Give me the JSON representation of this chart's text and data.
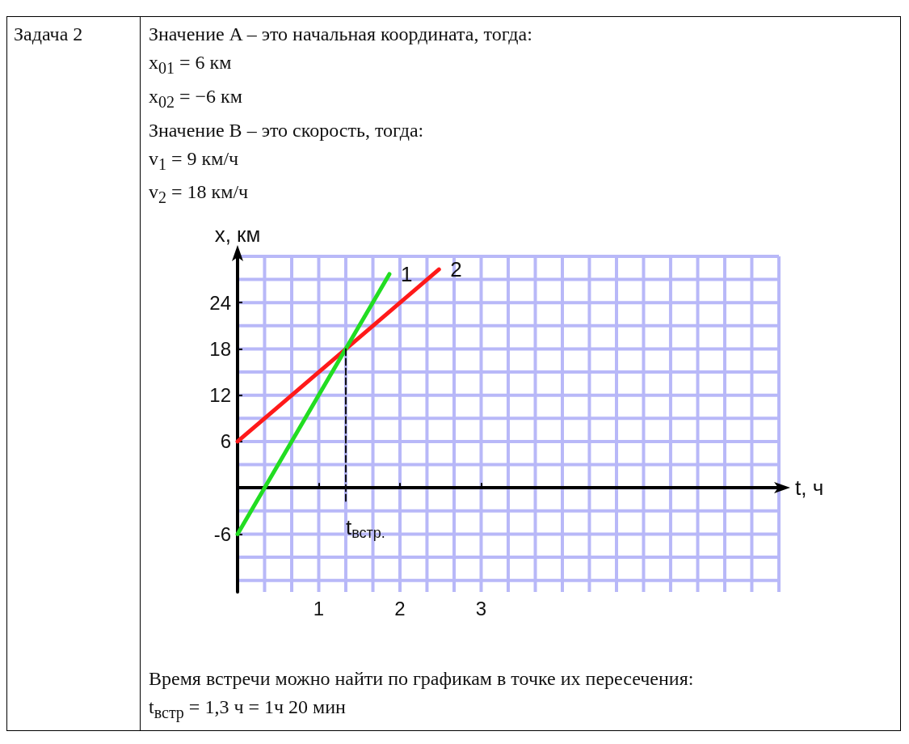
{
  "chart_data": {
    "type": "line",
    "title": "Задача 2",
    "xlabel": "t, ч",
    "ylabel": "x, км",
    "xlim": [
      0,
      6.667
    ],
    "ylim": [
      -13.5,
      30
    ],
    "xticks": [
      {
        "value": 0.333,
        "label": null
      },
      {
        "value": 0.667,
        "label": null
      },
      1,
      {
        "value": 1.333,
        "label": null
      },
      {
        "value": 1.667,
        "label": null
      },
      2,
      {
        "value": 2.333,
        "label": null
      },
      {
        "value": 2.667,
        "label": null
      },
      3,
      {
        "value": 3.333,
        "label": null
      },
      {
        "value": 3.667,
        "label": null
      },
      {
        "value": 4,
        "label": null
      },
      {
        "value": 4.333,
        "label": null
      },
      {
        "value": 4.667,
        "label": null
      },
      {
        "value": 5,
        "label": null
      },
      {
        "value": 5.333,
        "label": null
      },
      {
        "value": 5.667,
        "label": null
      },
      {
        "value": 6,
        "label": null
      },
      {
        "value": 6.333,
        "label": null
      },
      {
        "value": 6.667,
        "label": null
      }
    ],
    "yticks": [
      {
        "value": -12,
        "label": null
      },
      {
        "value": -9,
        "label": null
      },
      -6,
      {
        "value": -3,
        "label": null
      },
      {
        "value": 3,
        "label": null
      },
      6,
      {
        "value": 9,
        "label": null
      },
      12,
      {
        "value": 15,
        "label": null
      },
      18,
      {
        "value": 21,
        "label": null
      },
      24,
      {
        "value": 27,
        "label": null
      },
      {
        "value": 30,
        "label": null
      }
    ],
    "grid": true,
    "marker": "none",
    "series": [
      {
        "name": "2",
        "color": "#ff1a1a",
        "x": [
          0,
          2.48
        ],
        "values": [
          6,
          28.3
        ]
      },
      {
        "name": "1",
        "color": "#22dd22",
        "x": [
          0,
          1.87
        ],
        "values": [
          -6,
          27.7
        ]
      },
      {
        "color": "#111111",
        "x": [
          1.333,
          1.333
        ],
        "values": [
          18,
          -2
        ],
        "line_style": "dashed"
      }
    ],
    "annotations": [
      "Значение A – это начальная координата, тогда:",
      "x$_{01}$ = 6 км",
      "x$_{02}$ = −6 км",
      "Значение B – это скорость, тогда:",
      "v$_{1}$ = 9 км/ч",
      "v$_{2}$ = 18 км/ч",
      {
        "text": "t$_{встр.}$",
        "x": 1.333,
        "y": -2
      },
      "Время встречи можно найти по графикам в точке их пересечения:",
      "t$_{встр}$ = 1,3 ч = 1ч 20 мин"
    ]
  }
}
